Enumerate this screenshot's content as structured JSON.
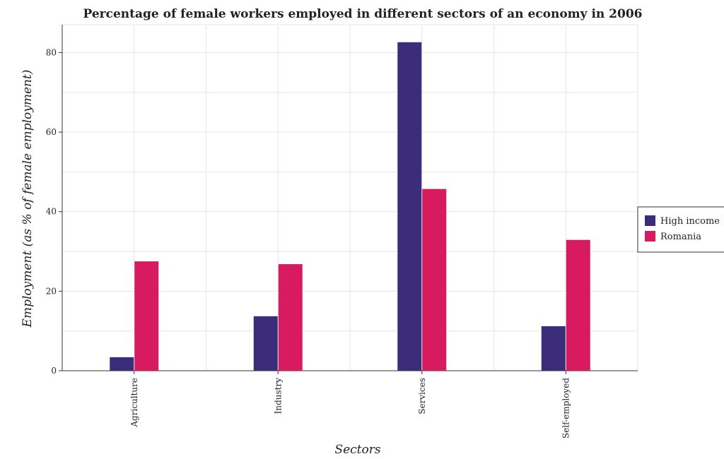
{
  "chart_data": {
    "type": "bar",
    "title": "Percentage of female workers employed in different sectors of an economy in 2006",
    "xlabel": "Sectors",
    "ylabel": "Employment (as % of female employment)",
    "categories": [
      "Agriculture",
      "Industry",
      "Services",
      "Self-employed"
    ],
    "series": [
      {
        "name": "High income",
        "color": "#3b2d7a",
        "values": [
          3.4,
          13.7,
          82.6,
          11.2
        ]
      },
      {
        "name": "Romania",
        "color": "#d81b60",
        "values": [
          27.5,
          26.8,
          45.7,
          32.9
        ]
      }
    ],
    "ylim": [
      0,
      87
    ],
    "yticks": [
      0,
      20,
      40,
      60,
      80
    ],
    "grid": true,
    "legend_position": "right"
  }
}
